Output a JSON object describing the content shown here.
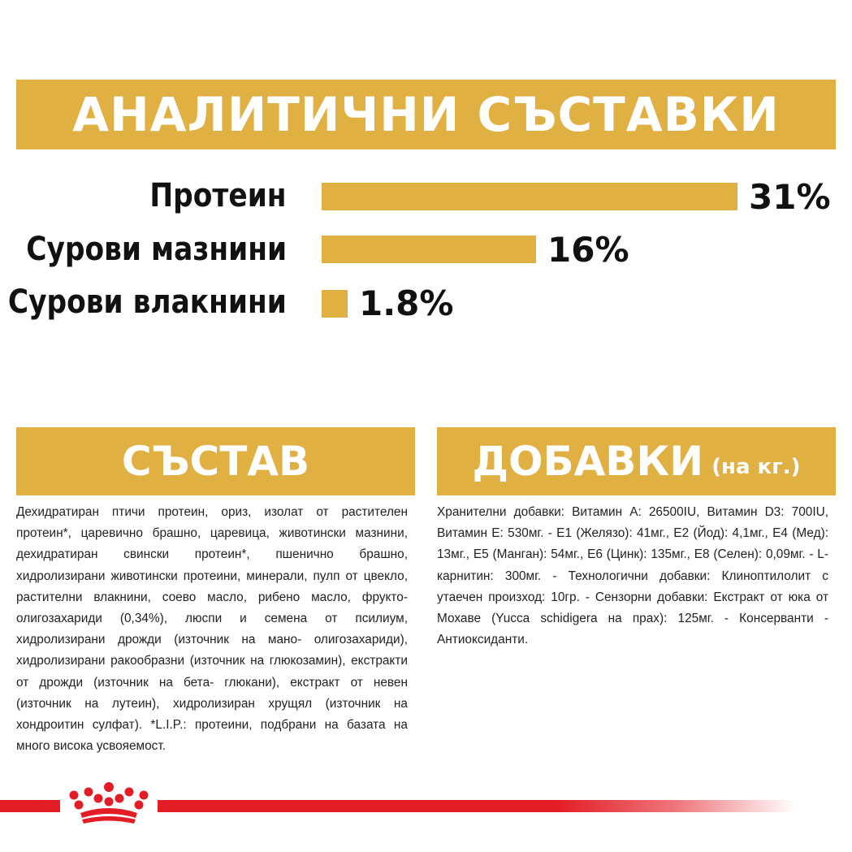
{
  "analytic": {
    "title": "АНАЛИТИЧНИ СЪСТАВКИ",
    "rows": [
      {
        "label": "Протеин",
        "value_text": "31%",
        "value": 31
      },
      {
        "label": "Сурови мазнини",
        "value_text": "16%",
        "value": 16
      },
      {
        "label": "Сурови влакнини",
        "value_text": "1.8%",
        "value": 1.8
      }
    ]
  },
  "composition": {
    "title": "СЪСТАВ",
    "text": "Дехидратиран птичи протеин, ориз, изолат от растителен протеин*, царевично брашно, царевица, животински мазнини, дехидратиран свински протеин*, пшенично брашно, хидролизирани животински протеини, минерали, пулп от цвекло, растителни влакнини, соево масло, рибено масло, фрукто- олигозахариди (0,34%), люспи и семена от псилиум, хидролизирани дрожди (източник на мано- олигозахариди), хидролизирани ракообразни (източник на глюкозамин), екстракти от дрожди (източник на бета- глюкани), екстракт от невен (източник на лутеин), хидролизиран хрущял (източник на хондроитин сулфат). *L.I.P.: протеини, подбрани на базата на много висока усвояемост."
  },
  "additives": {
    "title": "ДОБАВКИ",
    "title_suffix": "(на кг.)",
    "text": "Хранителни добавки: Витамин A: 26500IU, Витамин D3: 700IU, Витамин E: 530мг. - E1 (Желязо): 41мг., E2 (Йод): 4,1мг., E4 (Мед): 13мг., E5 (Манган): 54мг., E6 (Цинк): 135мг., E8 (Селен): 0,09мг. - L-карнитин: 300мг. - Технологични добавки: Клиноптилолит с утаечен произход: 10гр. - Сензорни добавки: Екстракт от юка от Мохаве (Yucca schidigera на прах): 125мг. - Консерванти - Антиоксиданти."
  },
  "brand": {
    "logo_icon": "royal-canin-crown-icon",
    "accent_color": "#e1b043",
    "brand_color": "#e31d25"
  }
}
